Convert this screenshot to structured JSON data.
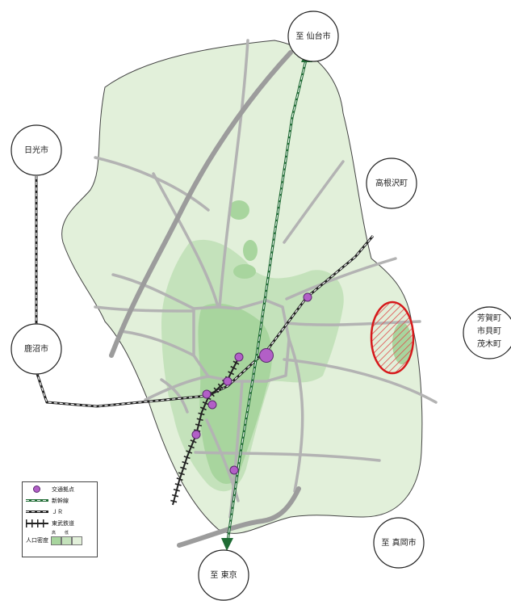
{
  "places": {
    "sendai": "至 仙台市",
    "nikko": "日光市",
    "takanezawa": "高根沢町",
    "haga": [
      "芳賀町",
      "市貝町",
      "茂木町"
    ],
    "kanuma": "鹿沼市",
    "moka": "至 真岡市",
    "tokyo": "至 東京"
  },
  "legend": {
    "node": "交通拠点",
    "shinkansen": "新幹線",
    "jr": "ＪＲ",
    "tobu": "東武鉄道",
    "density": "人口密度",
    "density_high": "高",
    "density_low": "低"
  },
  "colors": {
    "area": "#e2f0da",
    "density_mid": "#c4e2bb",
    "density_high": "#a8d59e",
    "road": "#b3b3b3",
    "node": "#b25fc7",
    "shinkansen": "#1f6b34",
    "industrial": "#d6191b"
  }
}
